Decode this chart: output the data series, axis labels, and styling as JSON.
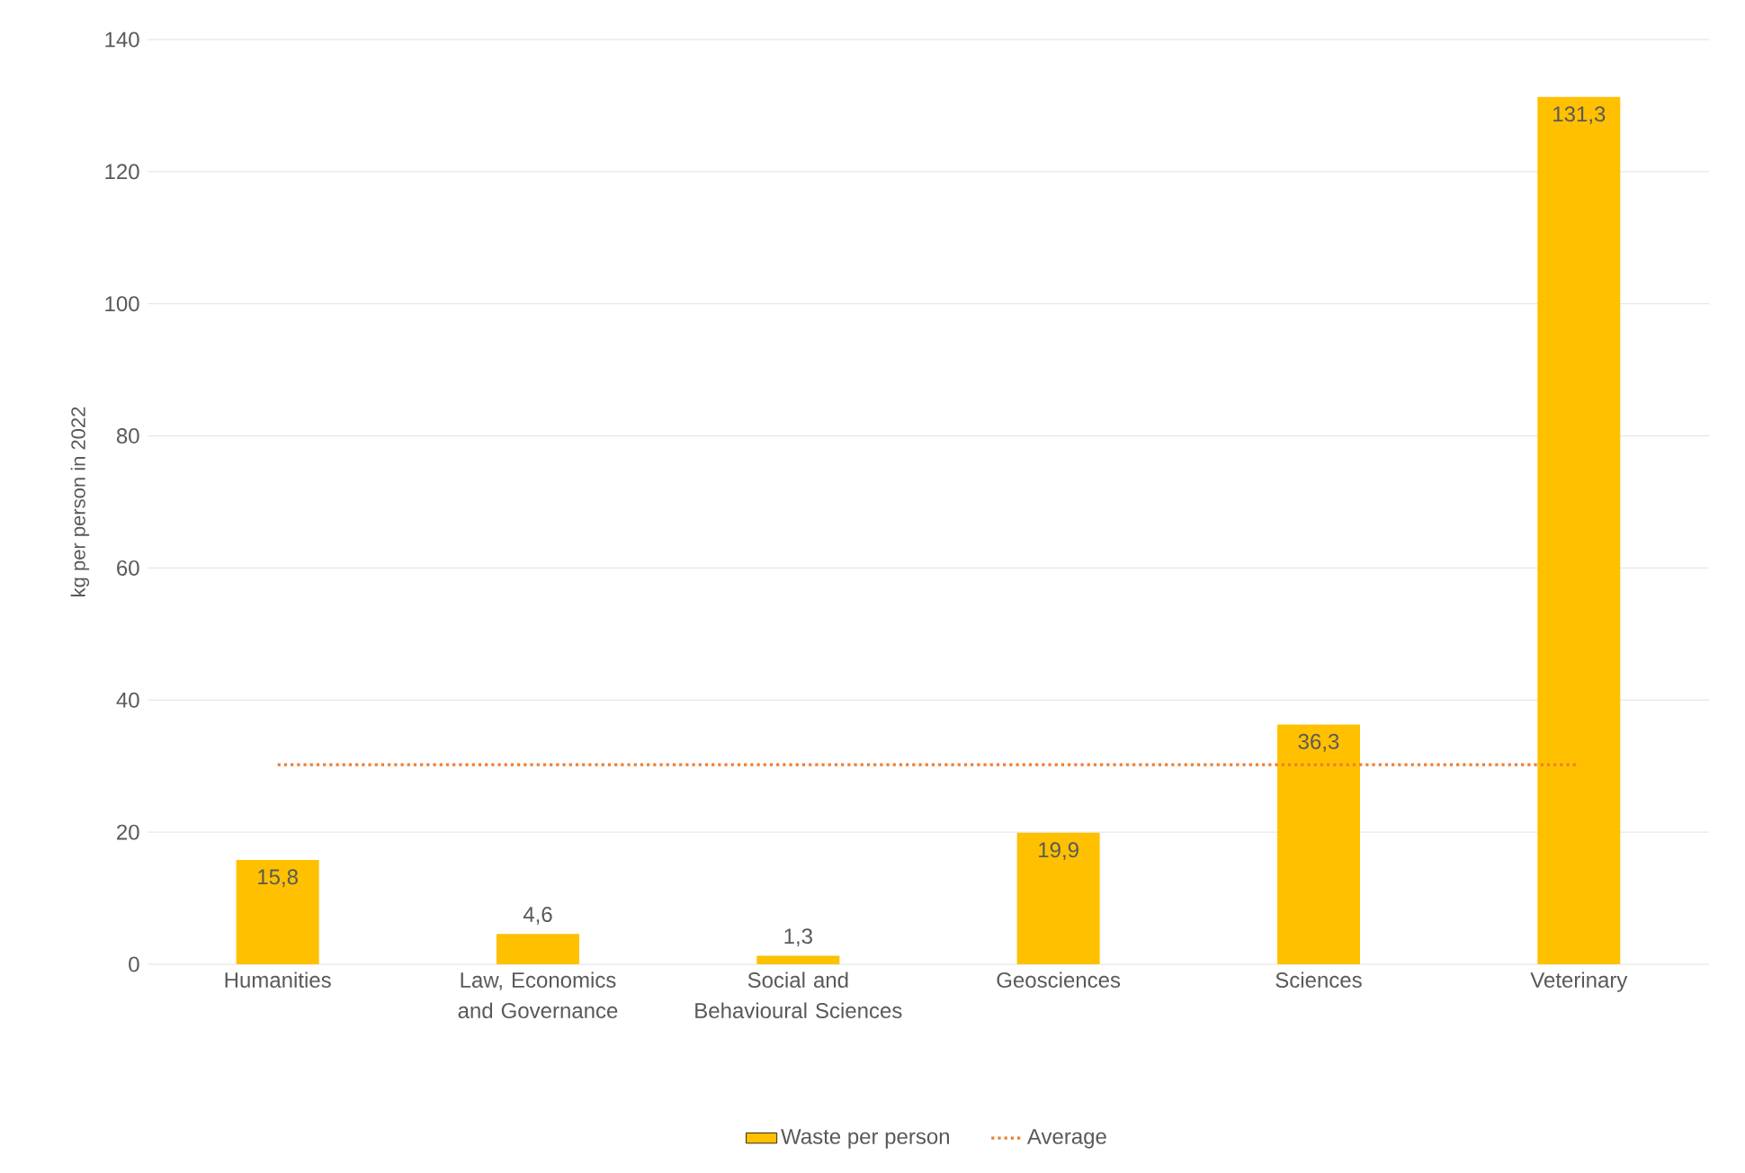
{
  "chart_data": {
    "type": "bar",
    "ylabel": "kg per person in 2022",
    "categories": [
      "Humanities",
      "Law, Economics and Governance",
      "Social and Behavioural Sciences",
      "Geosciences",
      "Sciences",
      "Veterinary"
    ],
    "ylim": [
      0,
      140
    ],
    "yticks": [
      0,
      20,
      40,
      60,
      80,
      100,
      120,
      140
    ],
    "grid": "y",
    "legend": "bottom",
    "series": [
      {
        "name": "Waste per person",
        "color": "#ffc000",
        "values": [
          15.8,
          4.6,
          1.3,
          19.9,
          36.3,
          131.3
        ],
        "value_labels": [
          "15,8",
          "4,6",
          "1,3",
          "19,9",
          "36,3",
          "131,3"
        ]
      },
      {
        "name": "Average",
        "type": "line",
        "color": "#ed7d31",
        "line_style": "dotted",
        "values": [
          30.2,
          30.2,
          30.2,
          30.2,
          30.2,
          30.2
        ]
      }
    ]
  }
}
